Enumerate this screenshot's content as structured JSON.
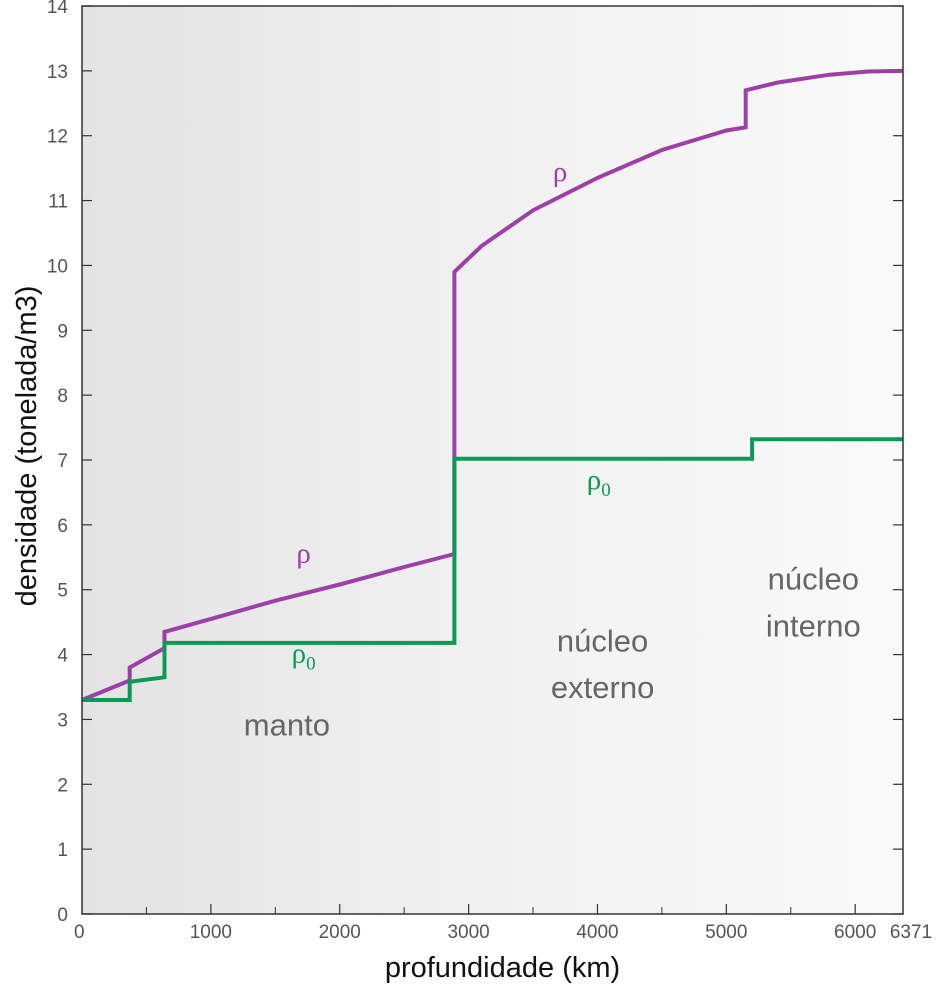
{
  "chart_data": {
    "type": "line",
    "xlabel": "profundidade (km)",
    "ylabel": "densidade (tonelada/m3)",
    "xlim": [
      0,
      6371
    ],
    "ylim": [
      0,
      14
    ],
    "x_ticks": [
      "0",
      "1000",
      "2000",
      "3000",
      "4000",
      "5000",
      "6000",
      "6371"
    ],
    "y_ticks": [
      "0",
      "1",
      "2",
      "3",
      "4",
      "5",
      "6",
      "7",
      "8",
      "9",
      "10",
      "11",
      "12",
      "13",
      "14"
    ],
    "grid": false,
    "background": "gradient-gray",
    "series": [
      {
        "label": "ρ",
        "color": "#9c3fa6",
        "points": [
          [
            0,
            3.3
          ],
          [
            370,
            3.6
          ],
          [
            370,
            3.8
          ],
          [
            640,
            4.1
          ],
          [
            640,
            4.35
          ],
          [
            1000,
            4.55
          ],
          [
            1500,
            4.83
          ],
          [
            2000,
            5.08
          ],
          [
            2500,
            5.35
          ],
          [
            2890,
            5.55
          ],
          [
            2890,
            9.9
          ],
          [
            3100,
            10.3
          ],
          [
            3500,
            10.85
          ],
          [
            4000,
            11.35
          ],
          [
            4500,
            11.78
          ],
          [
            5000,
            12.08
          ],
          [
            5150,
            12.13
          ],
          [
            5150,
            12.7
          ],
          [
            5400,
            12.82
          ],
          [
            5800,
            12.94
          ],
          [
            6100,
            12.99
          ],
          [
            6371,
            13.0
          ]
        ]
      },
      {
        "label": "ρ",
        "subscript": "0",
        "color": "#0a9a57",
        "points": [
          [
            0,
            3.3
          ],
          [
            370,
            3.3
          ],
          [
            370,
            3.58
          ],
          [
            640,
            3.65
          ],
          [
            640,
            4.18
          ],
          [
            2890,
            4.18
          ],
          [
            2890,
            7.02
          ],
          [
            5200,
            7.02
          ],
          [
            5200,
            7.32
          ],
          [
            6371,
            7.32
          ]
        ]
      }
    ],
    "annotations": [
      {
        "text": "ρ",
        "x": 1720,
        "y": 5.42,
        "series": 0
      },
      {
        "text": "ρ",
        "subscript": "0",
        "x": 1720,
        "y": 3.88,
        "series": 1
      },
      {
        "text": "ρ",
        "x": 3710,
        "y": 11.3,
        "series": 0
      },
      {
        "text": "ρ",
        "subscript": "0",
        "x": 4010,
        "y": 6.55,
        "series": 1
      },
      {
        "text": "manto",
        "x": 1590,
        "y": 2.75,
        "series": null
      },
      {
        "text": "núcleo",
        "x": 4040,
        "y": 4.05,
        "series": null
      },
      {
        "text": "externo",
        "x": 4040,
        "y": 3.33,
        "series": null
      },
      {
        "text": "núcleo",
        "x": 5675,
        "y": 5.0,
        "series": null
      },
      {
        "text": "interno",
        "x": 5675,
        "y": 4.28,
        "series": null
      }
    ]
  }
}
